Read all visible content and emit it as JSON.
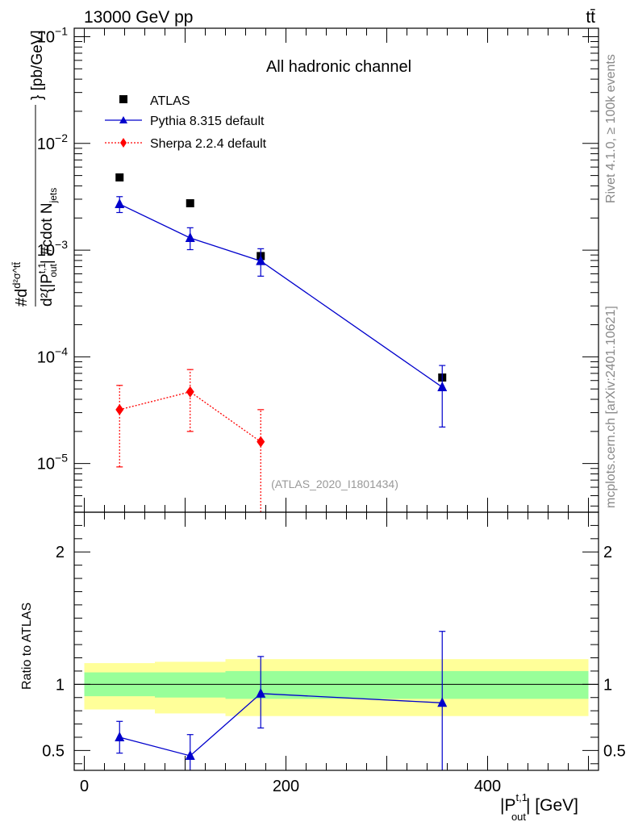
{
  "header": {
    "energy_label": "13000 GeV pp",
    "process_label": "tt̄"
  },
  "side_labels": {
    "rivet": "Rivet 4.1.0, ≥ 100k events",
    "source": "mcplots.cern.ch [arXiv:2401.10621]"
  },
  "chart_data": [
    {
      "type": "line",
      "panel": "main",
      "title": "All hadronic channel",
      "analysis_label": "(ATLAS_2020_I1801434)",
      "xlabel": "|P_out^{t,1}| [GeV]",
      "ylabel": "#d d²σ^{tt̄} / d²{|P_out^{t,1}| #cdot N_jets} [pb/GeV]",
      "ylabel_parts": {
        "numerator": "#d",
        "numerator_sup": "d²σ^tt̄",
        "denominator": "d²{|P",
        "denominator_sub": "out",
        "denominator_sup": "t,1",
        "denominator_tail": "| #cdot N",
        "denominator_tail_sub": "jets",
        "unit": "} [pb/GeV]"
      },
      "yscale": "log",
      "xlim": [
        -10,
        510
      ],
      "ylim": [
        3.5e-06,
        0.12
      ],
      "y_tick_labels": [
        {
          "value": 0.1,
          "mantissa": "10",
          "exp": "−1"
        },
        {
          "value": 0.01,
          "mantissa": "10",
          "exp": "−2"
        },
        {
          "value": 0.001,
          "mantissa": "10",
          "exp": "−3"
        },
        {
          "value": 0.0001,
          "mantissa": "10",
          "exp": "−4"
        },
        {
          "value": 1e-05,
          "mantissa": "10",
          "exp": "−5"
        }
      ],
      "legend_position": "top-left",
      "legend": [
        {
          "key": "atlas",
          "label": "ATLAS"
        },
        {
          "key": "pythia",
          "label": "Pythia 8.315 default"
        },
        {
          "key": "sherpa",
          "label": "Sherpa 2.2.4 default"
        }
      ],
      "series": [
        {
          "key": "atlas",
          "name": "ATLAS",
          "color": "#000000",
          "marker": "square",
          "x": [
            35,
            105,
            175,
            355
          ],
          "y": [
            0.0048,
            0.00275,
            0.00088,
            6.4e-05
          ]
        },
        {
          "key": "pythia",
          "name": "Pythia 8.315 default",
          "color": "#0000cc",
          "marker": "triangle",
          "line": "solid",
          "x": [
            35,
            105,
            175,
            355
          ],
          "y": [
            0.0027,
            0.0013,
            0.00079,
            5.2e-05
          ],
          "err_low": [
            0.00225,
            0.00101,
            0.00057,
            2.2e-05
          ],
          "err_high": [
            0.00317,
            0.00162,
            0.00103,
            8.3e-05
          ]
        },
        {
          "key": "sherpa",
          "name": "Sherpa 2.2.4 default",
          "color": "#ff0000",
          "marker": "diamond",
          "line": "dotted",
          "x": [
            35,
            105,
            175
          ],
          "y": [
            3.2e-05,
            4.7e-05,
            1.6e-05
          ],
          "err_low": [
            9.3e-06,
            2e-05,
            3e-06
          ],
          "err_high": [
            5.4e-05,
            7.6e-05,
            3.2e-05
          ]
        }
      ]
    },
    {
      "type": "line",
      "panel": "ratio",
      "ylabel": "Ratio to ATLAS",
      "xlim": [
        -10,
        510
      ],
      "ylim": [
        0.35,
        2.3
      ],
      "x_ticks": [
        0,
        200,
        400
      ],
      "x_tick_labels": [
        "0",
        "200",
        "400"
      ],
      "y_ticks": [
        0.5,
        1,
        2
      ],
      "y_tick_labels": [
        "0.5",
        "1",
        "2"
      ],
      "bands": {
        "inner_color": "#99ff99",
        "outer_color": "#ffff99",
        "bins": [
          {
            "lo": 0,
            "hi": 70,
            "inner": [
              0.91,
              1.09
            ],
            "outer": [
              0.81,
              1.16
            ]
          },
          {
            "lo": 70,
            "hi": 140,
            "inner": [
              0.9,
              1.09
            ],
            "outer": [
              0.78,
              1.17
            ]
          },
          {
            "lo": 140,
            "hi": 500,
            "inner": [
              0.89,
              1.1
            ],
            "outer": [
              0.76,
              1.19
            ]
          }
        ]
      },
      "series": [
        {
          "key": "pythia",
          "name": "Pythia 8.315 default",
          "color": "#0000cc",
          "marker": "triangle",
          "x": [
            35,
            105,
            175,
            355
          ],
          "y": [
            0.6,
            0.46,
            0.93,
            0.86
          ],
          "err_low": [
            0.48,
            0.3,
            0.67,
            0.3
          ],
          "err_high": [
            0.72,
            0.62,
            1.21,
            1.4
          ]
        }
      ]
    }
  ]
}
